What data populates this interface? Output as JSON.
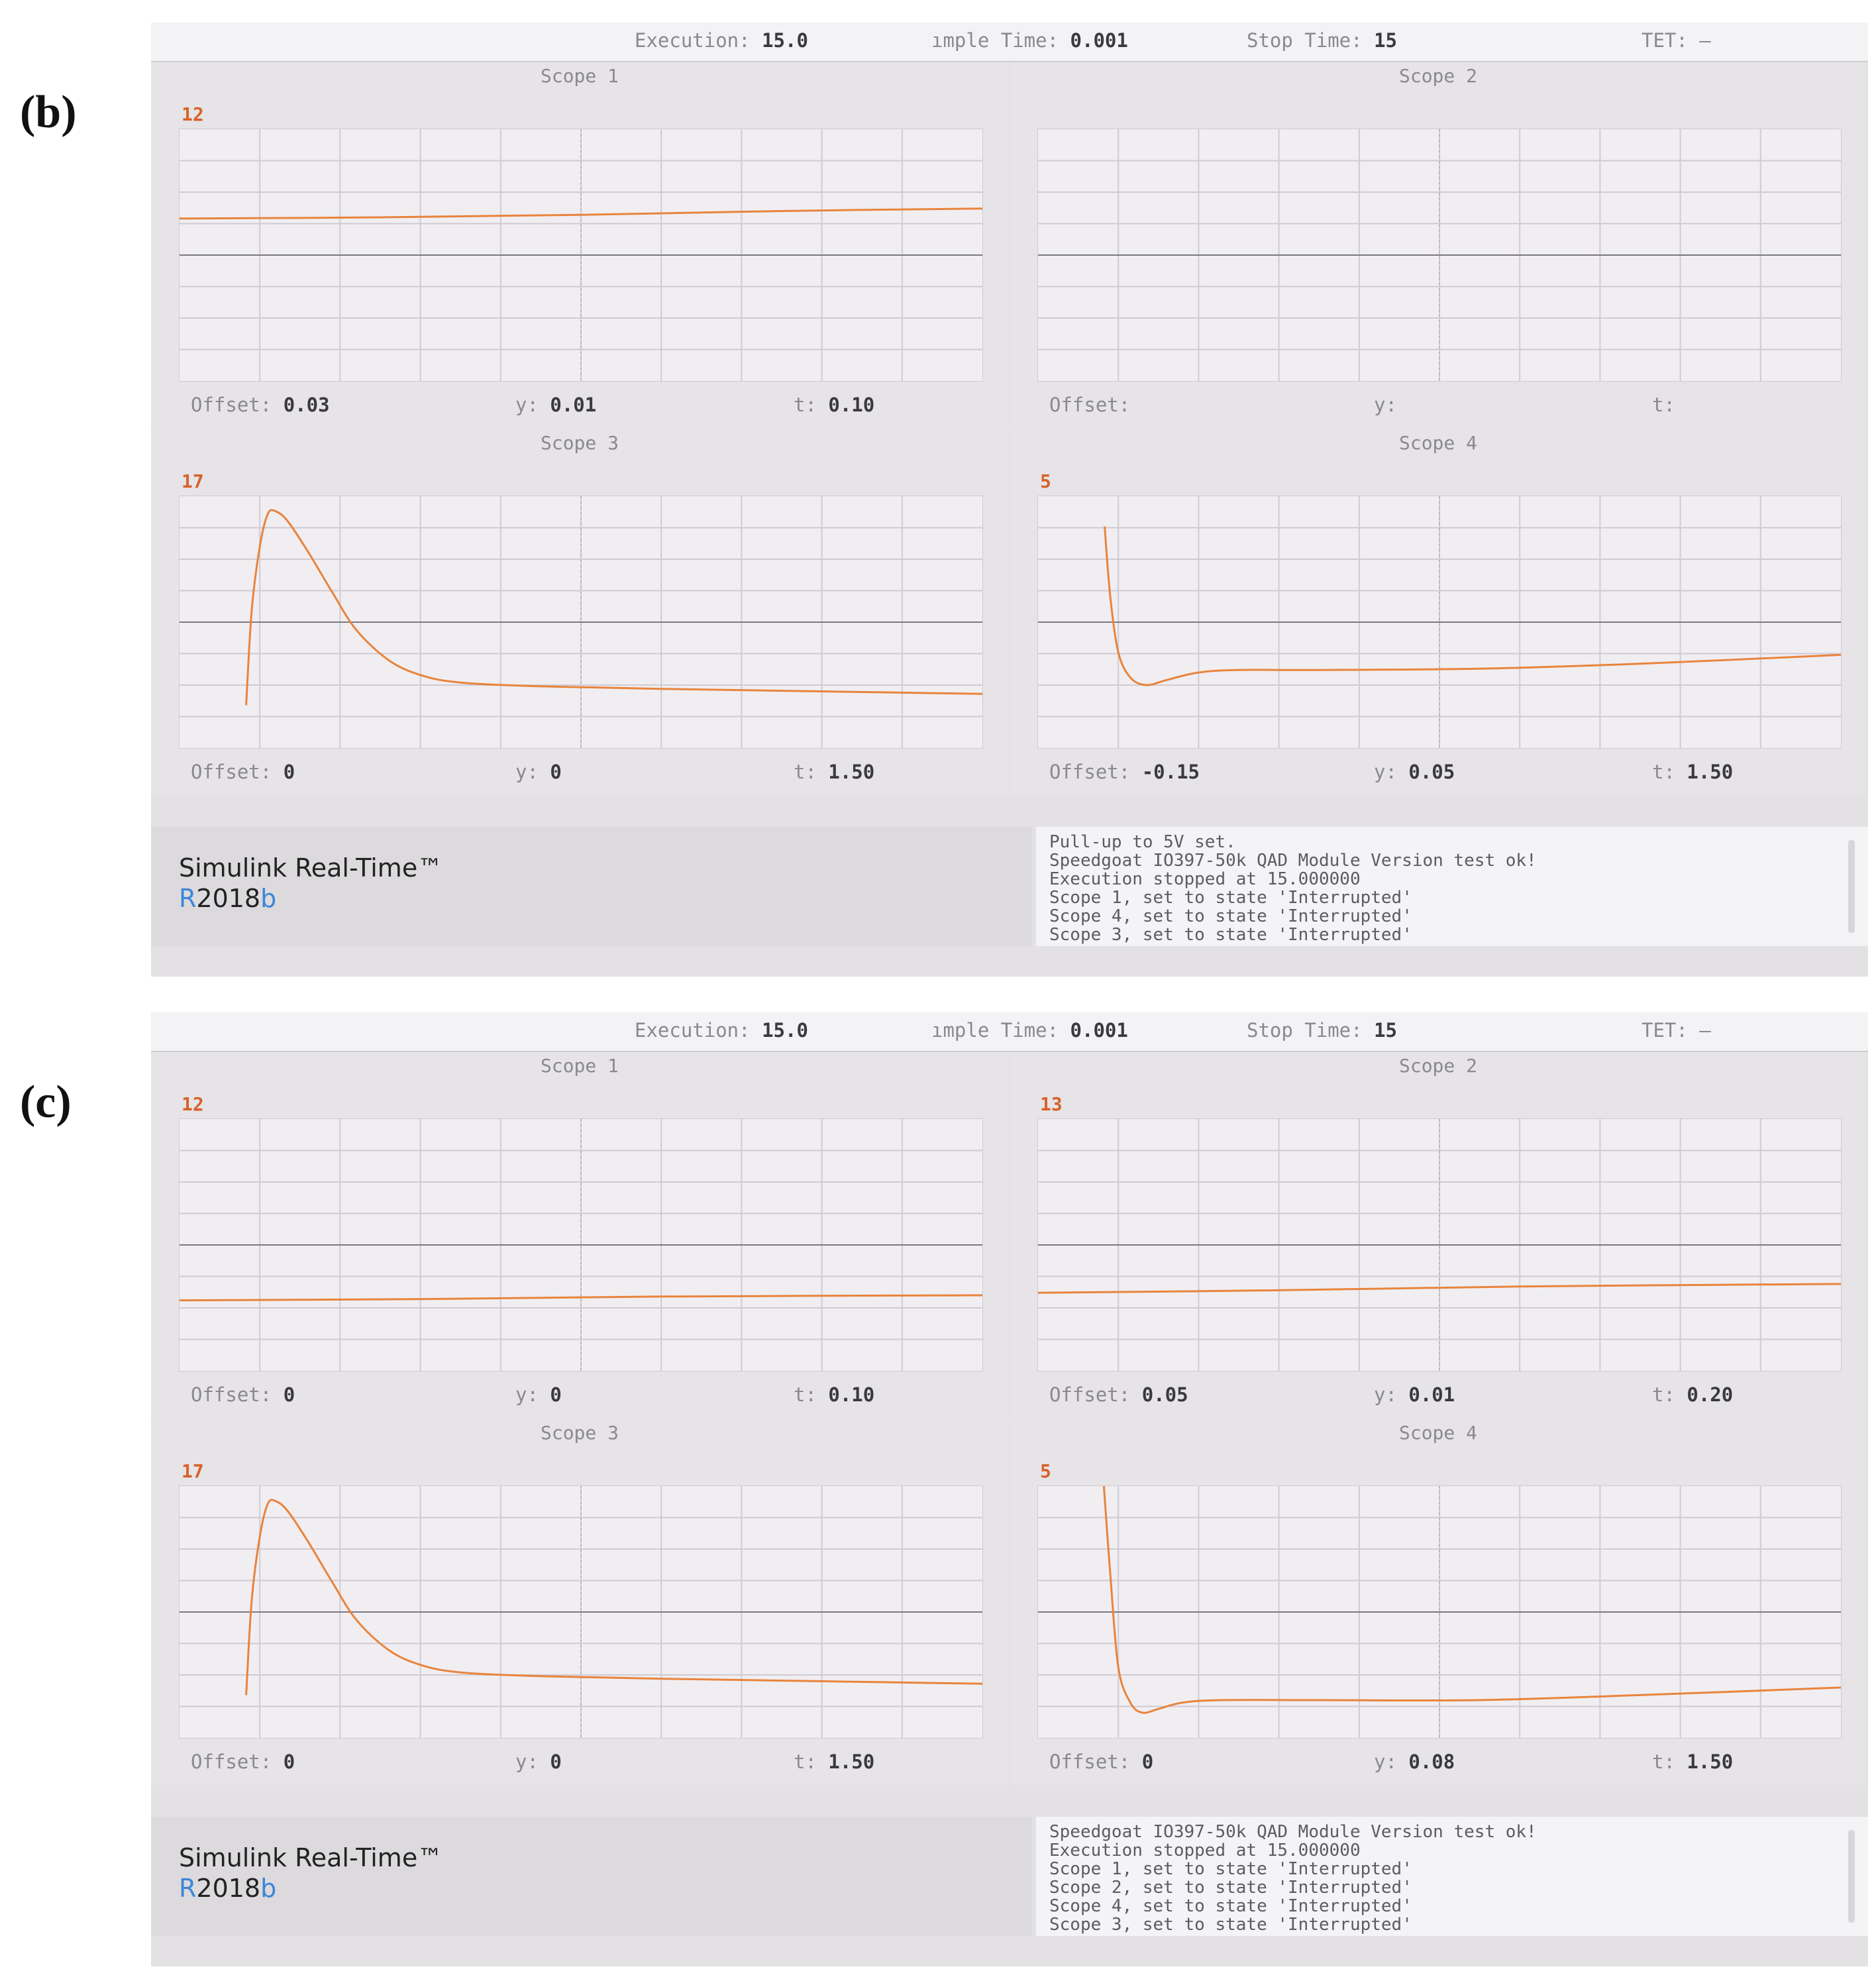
{
  "accent_color": "#e8843c",
  "screens": [
    {
      "label": "(b)",
      "topbar": {
        "execution_label": "Execution:",
        "execution_value": "15.0",
        "sample_label": "ımple Time:",
        "sample_value": "0.001",
        "stop_label": "Stop Time:",
        "stop_value": "15",
        "tet_label": "TET: –"
      },
      "scopes": [
        {
          "title": "Scope 1",
          "ylim": "12",
          "offset": "0.03",
          "y": "0.01",
          "t": "0.10"
        },
        {
          "title": "Scope 2",
          "ylim": "",
          "offset": "",
          "y": "",
          "t": ""
        },
        {
          "title": "Scope 3",
          "ylim": "17",
          "offset": "0",
          "y": "0",
          "t": "1.50"
        },
        {
          "title": "Scope 4",
          "ylim": "5",
          "offset": "-0.15",
          "y": "0.05",
          "t": "1.50"
        }
      ],
      "footer": {
        "brand_title": "Simulink Real-Time™",
        "brand_r": "R",
        "brand_year": "2018",
        "brand_b": "b",
        "log": [
          "Pull-up to 5V set.",
          "Speedgoat IO397-50k QAD Module Version test ok!",
          "Execution stopped at 15.000000",
          "Scope 1, set to state 'Interrupted'",
          "Scope 4, set to state 'Interrupted'",
          "Scope 3, set to state 'Interrupted'"
        ]
      }
    },
    {
      "label": "(c)",
      "topbar": {
        "execution_label": "Execution:",
        "execution_value": "15.0",
        "sample_label": "ımple Time:",
        "sample_value": "0.001",
        "stop_label": "Stop Time:",
        "stop_value": "15",
        "tet_label": "TET: –"
      },
      "scopes": [
        {
          "title": "Scope 1",
          "ylim": "12",
          "offset": "0",
          "y": "0",
          "t": "0.10"
        },
        {
          "title": "Scope 2",
          "ylim": "13",
          "offset": "0.05",
          "y": "0.01",
          "t": "0.20"
        },
        {
          "title": "Scope 3",
          "ylim": "17",
          "offset": "0",
          "y": "0",
          "t": "1.50"
        },
        {
          "title": "Scope 4",
          "ylim": "5",
          "offset": "0",
          "y": "0.08",
          "t": "1.50"
        }
      ],
      "footer": {
        "brand_title": "Simulink Real-Time™",
        "brand_r": "R",
        "brand_year": "2018",
        "brand_b": "b",
        "log": [
          "Speedgoat IO397-50k QAD Module Version test ok!",
          "Execution stopped at 15.000000",
          "Scope 1, set to state 'Interrupted'",
          "Scope 2, set to state 'Interrupted'",
          "Scope 4, set to state 'Interrupted'",
          "Scope 3, set to state 'Interrupted'"
        ]
      }
    }
  ]
}
